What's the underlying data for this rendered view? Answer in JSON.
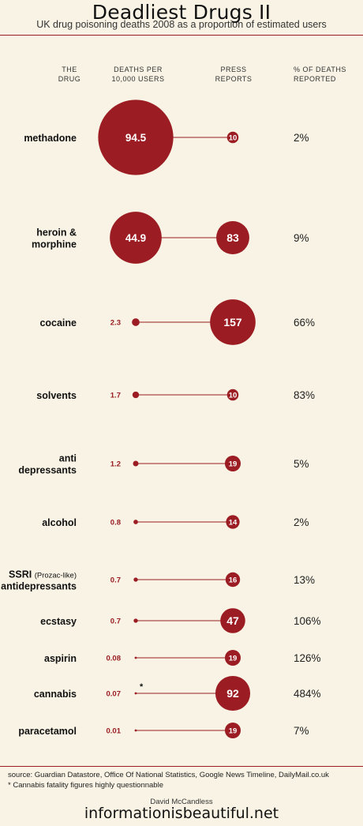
{
  "title": "Deadliest Drugs II",
  "subtitle": "UK drug poisoning deaths 2008 as a proportion of estimated users",
  "headers": {
    "drug": [
      "THE",
      "DRUG"
    ],
    "deaths": [
      "DEATHS PER",
      "10,000 USERS"
    ],
    "press": [
      "PRESS",
      "REPORTS"
    ],
    "pct": [
      "% OF DEATHS",
      "REPORTED"
    ]
  },
  "colors": {
    "accent": "#9b1c22",
    "background": "#f8f3e4"
  },
  "chart_data": {
    "type": "table",
    "series": [
      {
        "name": "Deaths per 10,000 users",
        "values": [
          94.5,
          44.9,
          2.3,
          1.7,
          1.2,
          0.8,
          0.7,
          0.7,
          0.08,
          0.07,
          0.01
        ]
      },
      {
        "name": "Press reports",
        "values": [
          10,
          83,
          157,
          10,
          19,
          14,
          16,
          47,
          19,
          92,
          19
        ]
      },
      {
        "name": "% of deaths reported",
        "values": [
          "2%",
          "9%",
          "66%",
          "83%",
          "5%",
          "2%",
          "13%",
          "106%",
          "126%",
          "484%",
          "7%"
        ]
      }
    ],
    "rows": [
      {
        "drug": [
          "methadone"
        ],
        "deaths": "94.5",
        "deaths_value": 94.5,
        "press": 10,
        "pct": "2%"
      },
      {
        "drug": [
          "heroin &",
          "morphine"
        ],
        "deaths": "44.9",
        "deaths_value": 44.9,
        "press": 83,
        "pct": "9%"
      },
      {
        "drug": [
          "cocaine"
        ],
        "deaths": "2.3",
        "deaths_value": 2.3,
        "press": 157,
        "pct": "66%"
      },
      {
        "drug": [
          "solvents"
        ],
        "deaths": "1.7",
        "deaths_value": 1.7,
        "press": 10,
        "pct": "83%"
      },
      {
        "drug": [
          "anti",
          "depressants"
        ],
        "deaths": "1.2",
        "deaths_value": 1.2,
        "press": 19,
        "pct": "5%"
      },
      {
        "drug": [
          "alcohol"
        ],
        "deaths": "0.8",
        "deaths_value": 0.8,
        "press": 14,
        "pct": "2%"
      },
      {
        "drug": [
          "SSRI",
          "antidepressants"
        ],
        "drug_note": "(Prozac-like)",
        "deaths": "0.7",
        "deaths_value": 0.7,
        "press": 16,
        "pct": "13%"
      },
      {
        "drug": [
          "ecstasy"
        ],
        "deaths": "0.7",
        "deaths_value": 0.7,
        "press": 47,
        "pct": "106%"
      },
      {
        "drug": [
          "aspirin"
        ],
        "deaths": "0.08",
        "deaths_value": 0.08,
        "press": 19,
        "pct": "126%"
      },
      {
        "drug": [
          "cannabis"
        ],
        "deaths": "0.07",
        "deaths_value": 0.07,
        "press": 92,
        "pct": "484%",
        "note_marker": "*"
      },
      {
        "drug": [
          "paracetamol"
        ],
        "deaths": "0.01",
        "deaths_value": 0.01,
        "press": 19,
        "pct": "7%"
      }
    ]
  },
  "footer": {
    "source": "source: Guardian Datastore, Office Of National Statistics, Google News Timeline, DailyMail.co.uk",
    "note": "* Cannabis fatality figures highly questionnable",
    "author": "David McCandless",
    "site": "informationisbeautiful.net"
  }
}
